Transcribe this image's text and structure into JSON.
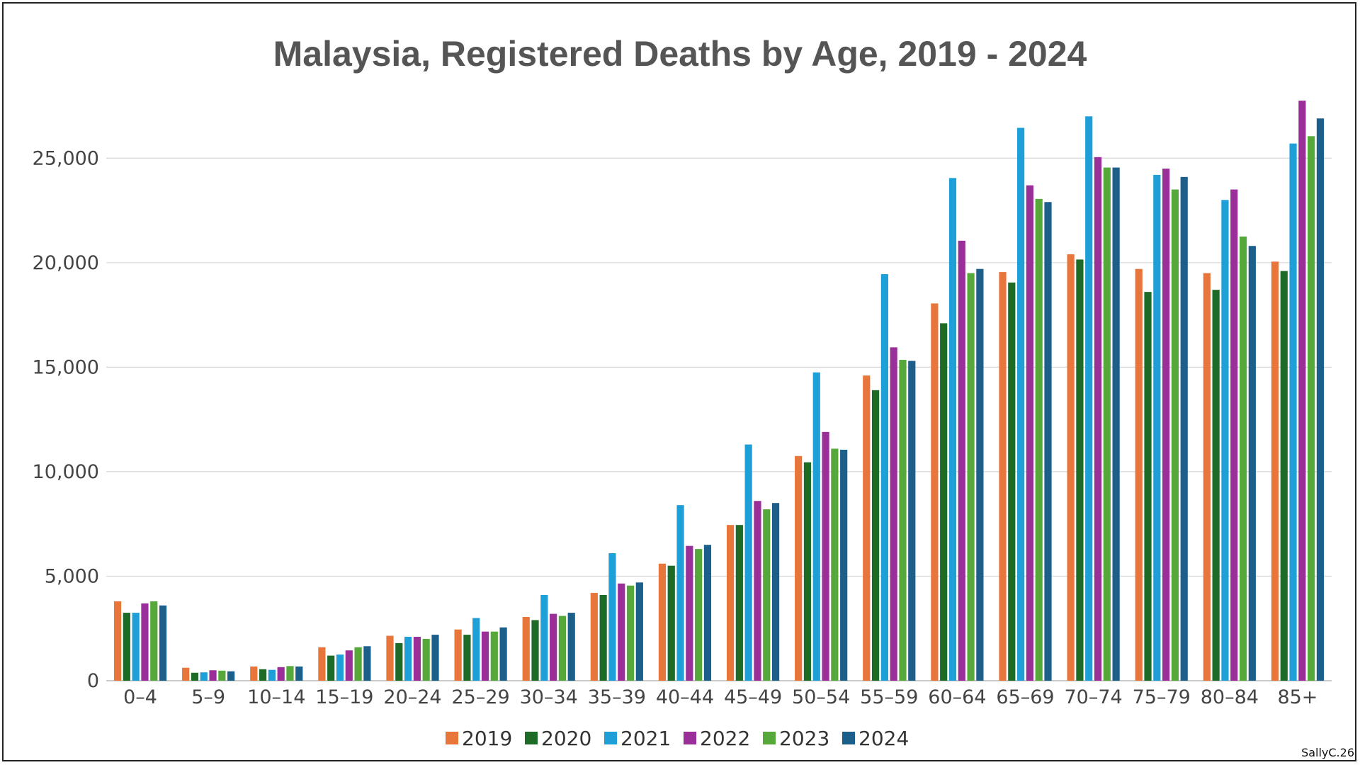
{
  "chart_data": {
    "type": "bar",
    "title": "Malaysia, Registered Deaths by Age, 2019 - 2024",
    "xlabel": "",
    "ylabel": "",
    "ylim": [
      0,
      28500
    ],
    "yticks": [
      0,
      5000,
      10000,
      15000,
      20000,
      25000
    ],
    "ytick_labels": [
      "0",
      "5,000",
      "10,000",
      "15,000",
      "20,000",
      "25,000"
    ],
    "grid": true,
    "legend_position": "bottom",
    "categories": [
      "0–4",
      "5–9",
      "10–14",
      "15–19",
      "20–24",
      "25–29",
      "30–34",
      "35–39",
      "40–44",
      "45–49",
      "50–54",
      "55–59",
      "60–64",
      "65–69",
      "70–74",
      "75–79",
      "80–84",
      "85+"
    ],
    "series": [
      {
        "name": "2019",
        "color": "#e8753a",
        "values": [
          3800,
          620,
          680,
          1600,
          2150,
          2450,
          3050,
          4200,
          5600,
          7450,
          10750,
          14600,
          18050,
          19550,
          20400,
          19700,
          19500,
          20050
        ]
      },
      {
        "name": "2020",
        "color": "#1e6a27",
        "values": [
          3250,
          380,
          550,
          1200,
          1800,
          2200,
          2900,
          4100,
          5500,
          7450,
          10450,
          13900,
          17100,
          19050,
          20150,
          18600,
          18700,
          19600
        ]
      },
      {
        "name": "2021",
        "color": "#1e9fd8",
        "values": [
          3250,
          400,
          520,
          1250,
          2100,
          3000,
          4100,
          6100,
          8400,
          11300,
          14750,
          19450,
          24050,
          26450,
          27000,
          24200,
          23000,
          25700
        ]
      },
      {
        "name": "2022",
        "color": "#9a2f9a",
        "values": [
          3700,
          500,
          650,
          1450,
          2100,
          2350,
          3200,
          4650,
          6450,
          8600,
          11900,
          15950,
          21050,
          23700,
          25050,
          24500,
          23500,
          27750
        ]
      },
      {
        "name": "2023",
        "color": "#56a83a",
        "values": [
          3800,
          480,
          700,
          1600,
          2000,
          2350,
          3100,
          4550,
          6300,
          8200,
          11100,
          15350,
          19500,
          23050,
          24550,
          23500,
          21250,
          26050
        ]
      },
      {
        "name": "2024",
        "color": "#1c5f8a",
        "values": [
          3600,
          450,
          680,
          1650,
          2200,
          2550,
          3250,
          4700,
          6500,
          8500,
          11050,
          15300,
          19700,
          22900,
          24550,
          24100,
          20800,
          26900
        ]
      }
    ]
  },
  "credit": "SallyC.26"
}
